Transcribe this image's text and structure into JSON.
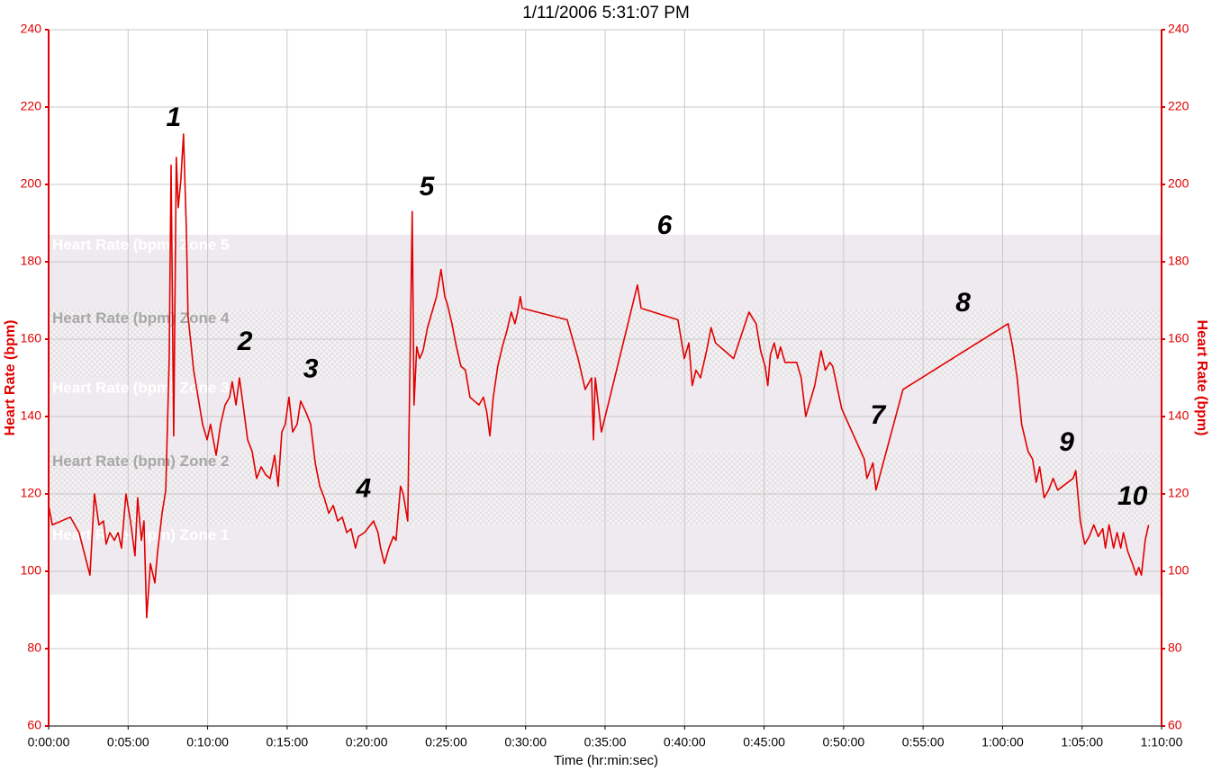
{
  "chart_data": {
    "type": "line",
    "title": "1/11/2006 5:31:07 PM",
    "xlabel": "Time (hr:min:sec)",
    "ylabel": "Heart Rate (bpm)",
    "y2label": "Heart Rate (bpm)",
    "xlim": [
      0,
      4200
    ],
    "xticks": [
      {
        "value": 0,
        "label": "0:00:00"
      },
      {
        "value": 300,
        "label": "0:05:00"
      },
      {
        "value": 600,
        "label": "0:10:00"
      },
      {
        "value": 900,
        "label": "0:15:00"
      },
      {
        "value": 1200,
        "label": "0:20:00"
      },
      {
        "value": 1500,
        "label": "0:25:00"
      },
      {
        "value": 1800,
        "label": "0:30:00"
      },
      {
        "value": 2100,
        "label": "0:35:00"
      },
      {
        "value": 2400,
        "label": "0:40:00"
      },
      {
        "value": 2700,
        "label": "0:45:00"
      },
      {
        "value": 3000,
        "label": "0:50:00"
      },
      {
        "value": 3300,
        "label": "0:55:00"
      },
      {
        "value": 3600,
        "label": "1:00:00"
      },
      {
        "value": 3900,
        "label": "1:05:00"
      },
      {
        "value": 4200,
        "label": "1:10:00"
      }
    ],
    "ylim": [
      60,
      240
    ],
    "yticks": [
      60,
      80,
      100,
      120,
      140,
      160,
      180,
      200,
      220,
      240
    ],
    "y2lim": [
      60,
      240
    ],
    "y2ticks": [
      60,
      80,
      100,
      120,
      140,
      160,
      180,
      200,
      220,
      240
    ],
    "grid": true,
    "axis_color": "#e00000",
    "zones": [
      {
        "label": "Heart Rate (bpm) Zone 1",
        "low": 94,
        "high": 112,
        "hatched": false
      },
      {
        "label": "Heart Rate (bpm) Zone 2",
        "low": 112,
        "high": 131,
        "hatched": true
      },
      {
        "label": "Heart Rate (bpm) Zone 3",
        "low": 131,
        "high": 150,
        "hatched": false
      },
      {
        "label": "Heart Rate (bpm) Zone 4",
        "low": 150,
        "high": 168,
        "hatched": true
      },
      {
        "label": "Heart Rate (bpm) Zone 5",
        "low": 168,
        "high": 187,
        "hatched": false
      }
    ],
    "annotations": [
      {
        "text": "1",
        "x": 472,
        "y": 217
      },
      {
        "text": "2",
        "x": 741,
        "y": 159
      },
      {
        "text": "3",
        "x": 989,
        "y": 152
      },
      {
        "text": "4",
        "x": 1189,
        "y": 121
      },
      {
        "text": "5",
        "x": 1427,
        "y": 199
      },
      {
        "text": "6",
        "x": 2324,
        "y": 189
      },
      {
        "text": "7",
        "x": 3129,
        "y": 140
      },
      {
        "text": "8",
        "x": 3451,
        "y": 169
      },
      {
        "text": "9",
        "x": 3842,
        "y": 133
      },
      {
        "text": "10",
        "x": 4090,
        "y": 119
      }
    ],
    "x": [
      0,
      14,
      82,
      115,
      156,
      173,
      190,
      207,
      217,
      231,
      248,
      262,
      275,
      292,
      309,
      326,
      336,
      350,
      360,
      370,
      384,
      401,
      411,
      428,
      442,
      455,
      462,
      472,
      482,
      489,
      499,
      509,
      520,
      526,
      537,
      547,
      564,
      581,
      598,
      611,
      632,
      649,
      666,
      683,
      693,
      707,
      720,
      734,
      751,
      768,
      785,
      802,
      819,
      836,
      853,
      866,
      880,
      893,
      907,
      921,
      938,
      951,
      972,
      989,
      1006,
      1023,
      1040,
      1057,
      1074,
      1091,
      1108,
      1125,
      1141,
      1158,
      1169,
      1192,
      1226,
      1243,
      1253,
      1267,
      1284,
      1301,
      1311,
      1328,
      1338,
      1355,
      1372,
      1379,
      1389,
      1400,
      1413,
      1430,
      1447,
      1464,
      1481,
      1495,
      1505,
      1522,
      1539,
      1556,
      1573,
      1590,
      1607,
      1624,
      1641,
      1654,
      1665,
      1678,
      1695,
      1712,
      1729,
      1746,
      1760,
      1770,
      1780,
      1787,
      1957,
      1998,
      2025,
      2049,
      2056,
      2063,
      2086,
      2222,
      2236,
      2375,
      2399,
      2416,
      2429,
      2443,
      2460,
      2483,
      2500,
      2517,
      2534,
      2551,
      2585,
      2643,
      2670,
      2687,
      2704,
      2714,
      2724,
      2738,
      2751,
      2762,
      2779,
      2823,
      2840,
      2857,
      2891,
      2915,
      2931,
      2948,
      2959,
      2993,
      3078,
      3088,
      3111,
      3122,
      3224,
      3621,
      3638,
      3655,
      3672,
      3696,
      3713,
      3727,
      3740,
      3757,
      3774,
      3791,
      3808,
      3866,
      3876,
      3893,
      3910,
      3927,
      3944,
      3961,
      3978,
      3988,
      4002,
      4019,
      4032,
      4046,
      4056,
      4073,
      4090,
      4104,
      4114,
      4124,
      4138,
      4151
    ],
    "series": [
      {
        "name": "Heart Rate (bpm)",
        "color": "#e00000",
        "values": [
          117,
          112,
          114,
          110,
          99,
          120,
          112,
          113,
          107,
          110,
          108,
          110,
          106,
          120,
          113,
          104,
          119,
          108,
          113,
          88,
          102,
          97,
          105,
          115,
          121,
          155,
          205,
          135,
          207,
          194,
          201,
          213,
          188,
          166,
          159,
          152,
          145,
          138,
          134,
          138,
          130,
          138,
          143,
          145,
          149,
          143,
          150,
          143,
          134,
          131,
          124,
          127,
          125,
          124,
          130,
          122,
          136,
          138,
          145,
          136,
          138,
          144,
          141,
          138,
          128,
          122,
          119,
          115,
          117,
          113,
          114,
          110,
          111,
          106,
          109,
          110,
          113,
          110,
          106,
          102,
          106,
          109,
          108,
          122,
          120,
          113,
          193,
          143,
          158,
          155,
          157,
          163,
          167,
          171,
          178,
          171,
          169,
          164,
          158,
          153,
          152,
          145,
          144,
          143,
          145,
          141,
          135,
          145,
          153,
          158,
          162,
          167,
          164,
          167,
          171,
          168,
          165,
          155,
          147,
          150,
          134,
          150,
          136,
          174,
          168,
          165,
          155,
          159,
          148,
          152,
          150,
          157,
          163,
          159,
          158,
          157,
          155,
          167,
          164,
          157,
          153,
          148,
          156,
          159,
          155,
          158,
          154,
          154,
          150,
          140,
          148,
          157,
          152,
          154,
          153,
          142,
          129,
          124,
          128,
          121,
          147,
          164,
          158,
          150,
          138,
          131,
          129,
          123,
          127,
          119,
          121,
          124,
          121,
          124,
          126,
          113,
          107,
          109,
          112,
          109,
          111,
          106,
          112,
          106,
          110,
          106,
          110,
          105,
          102,
          99,
          101,
          99,
          108,
          112
        ]
      }
    ]
  }
}
